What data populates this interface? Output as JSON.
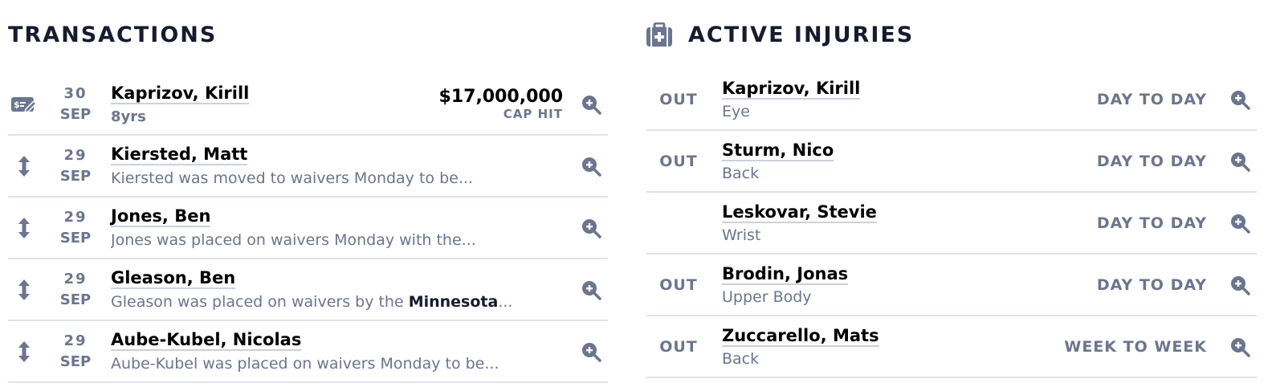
{
  "transactions": {
    "title": "TRANSACTIONS",
    "items": [
      {
        "icon": "contract-icon",
        "day": "30",
        "month": "SEP",
        "name": "Kaprizov, Kirill",
        "sub": "8yrs",
        "amount": "$17,000,000",
        "amount_label": "CAP HIT"
      },
      {
        "icon": "up-down-arrow-icon",
        "day": "29",
        "month": "SEP",
        "name": "Kiersted, Matt",
        "desc": "Kiersted was moved to waivers Monday to be..."
      },
      {
        "icon": "up-down-arrow-icon",
        "day": "29",
        "month": "SEP",
        "name": "Jones, Ben",
        "desc": "Jones was placed on waivers Monday with the..."
      },
      {
        "icon": "up-down-arrow-icon",
        "day": "29",
        "month": "SEP",
        "name": "Gleason, Ben",
        "desc": "Gleason was placed on waivers by the ",
        "desc_link": "Minnesota",
        "desc_tail": "..."
      },
      {
        "icon": "up-down-arrow-icon",
        "day": "29",
        "month": "SEP",
        "name": "Aube-Kubel, Nicolas",
        "desc": "Aube-Kubel was placed on waivers Monday to be..."
      }
    ]
  },
  "injuries": {
    "title": "ACTIVE INJURIES",
    "icon": "medical-kit-icon",
    "items": [
      {
        "status": "OUT",
        "name": "Kaprizov, Kirill",
        "part": "Eye",
        "duration": "DAY TO DAY"
      },
      {
        "status": "OUT",
        "name": "Sturm, Nico",
        "part": "Back",
        "duration": "DAY TO DAY"
      },
      {
        "status": "",
        "name": "Leskovar, Stevie",
        "part": "Wrist",
        "duration": "DAY TO DAY"
      },
      {
        "status": "OUT",
        "name": "Brodin, Jonas",
        "part": "Upper Body",
        "duration": "DAY TO DAY"
      },
      {
        "status": "OUT",
        "name": "Zuccarello, Mats",
        "part": "Back",
        "duration": "WEEK TO WEEK"
      }
    ]
  },
  "colors": {
    "muted": "#6b7590",
    "title": "#161b2e",
    "divider": "#dfe3ea"
  }
}
